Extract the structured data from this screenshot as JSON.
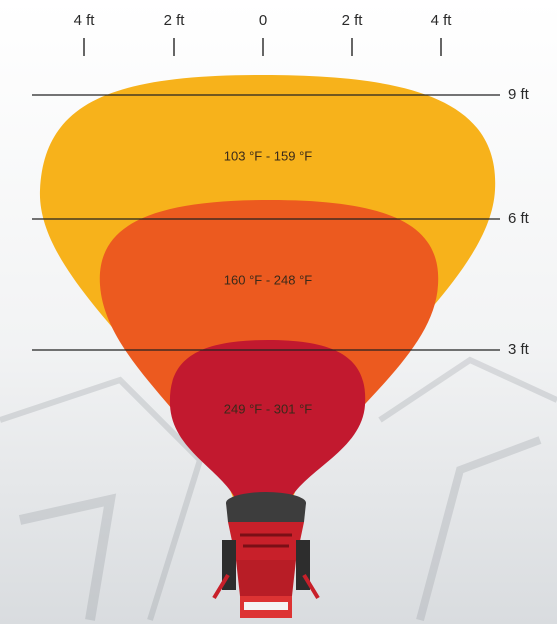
{
  "top_scale": [
    "4 ft",
    "2 ft",
    "0",
    "2 ft",
    "4 ft"
  ],
  "distance_lines": [
    "9 ft",
    "6 ft",
    "3 ft"
  ],
  "zones": [
    {
      "label": "103 °F - 159 °F"
    },
    {
      "label": "160 °F - 248 °F"
    },
    {
      "label": "249 °F - 301 °F"
    }
  ]
}
